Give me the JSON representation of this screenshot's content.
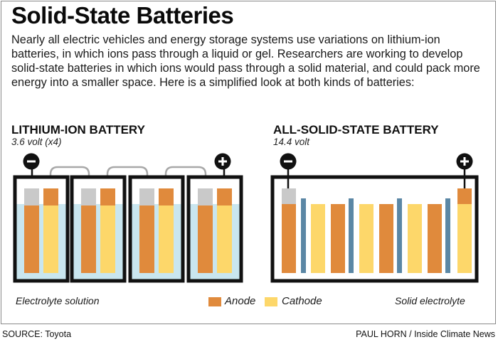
{
  "title": "Solid-State Batteries",
  "intro": "Nearly all electric vehicles and energy storage systems use variations on lithium-ion batteries, in which ions pass through a liquid or gel. Researchers are working to develop solid-state batteries in which ions would pass through a solid material, and could pack more energy into a smaller space. Here is a simplified look at both kinds of batteries:",
  "lithium_ion": {
    "heading": "LITHIUM-ION BATTERY",
    "voltage": "3.6 volt (x4)",
    "note": "Electrolyte solution",
    "cell_count": 4
  },
  "solid_state": {
    "heading": "ALL-SOLID-STATE BATTERY",
    "voltage": "14.4 volt",
    "note": "Solid electrolyte",
    "layer_count": 4
  },
  "terminals": {
    "negative": "−",
    "positive": "+"
  },
  "legend": {
    "anode": "Anode",
    "cathode": "Cathode"
  },
  "colors": {
    "anode": "#E08A3C",
    "cathode": "#FDD76A",
    "electrolyte_liquid": "#C9E6EF",
    "solid_electrolyte": "#5B87A5",
    "terminal_cap": "#C9C9C9",
    "wire": "#A8A8A8",
    "case": "#111111"
  },
  "footer": {
    "source": "SOURCE: Toyota",
    "credit": "PAUL HORN / Inside Climate News"
  }
}
